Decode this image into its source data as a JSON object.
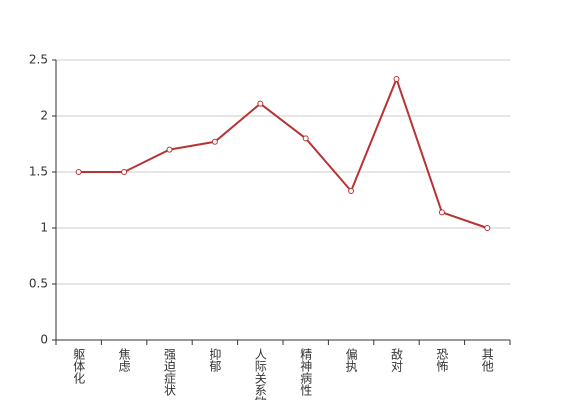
{
  "chart_data": {
    "type": "line",
    "categories": [
      "躯体化",
      "焦虑",
      "强迫症状",
      "抑郁",
      "人际关系敏感",
      "精神病性",
      "偏执",
      "敌对",
      "恐怖",
      "其他"
    ],
    "series": [
      {
        "color": "#b83333",
        "values": [
          1.5,
          1.5,
          1.7,
          1.77,
          2.11,
          1.8,
          1.33,
          2.33,
          1.14,
          1.0
        ]
      }
    ],
    "ylim": [
      0,
      2.5
    ],
    "yticks": [
      0,
      0.5,
      1,
      1.5,
      2,
      2.5
    ],
    "grid": true
  }
}
